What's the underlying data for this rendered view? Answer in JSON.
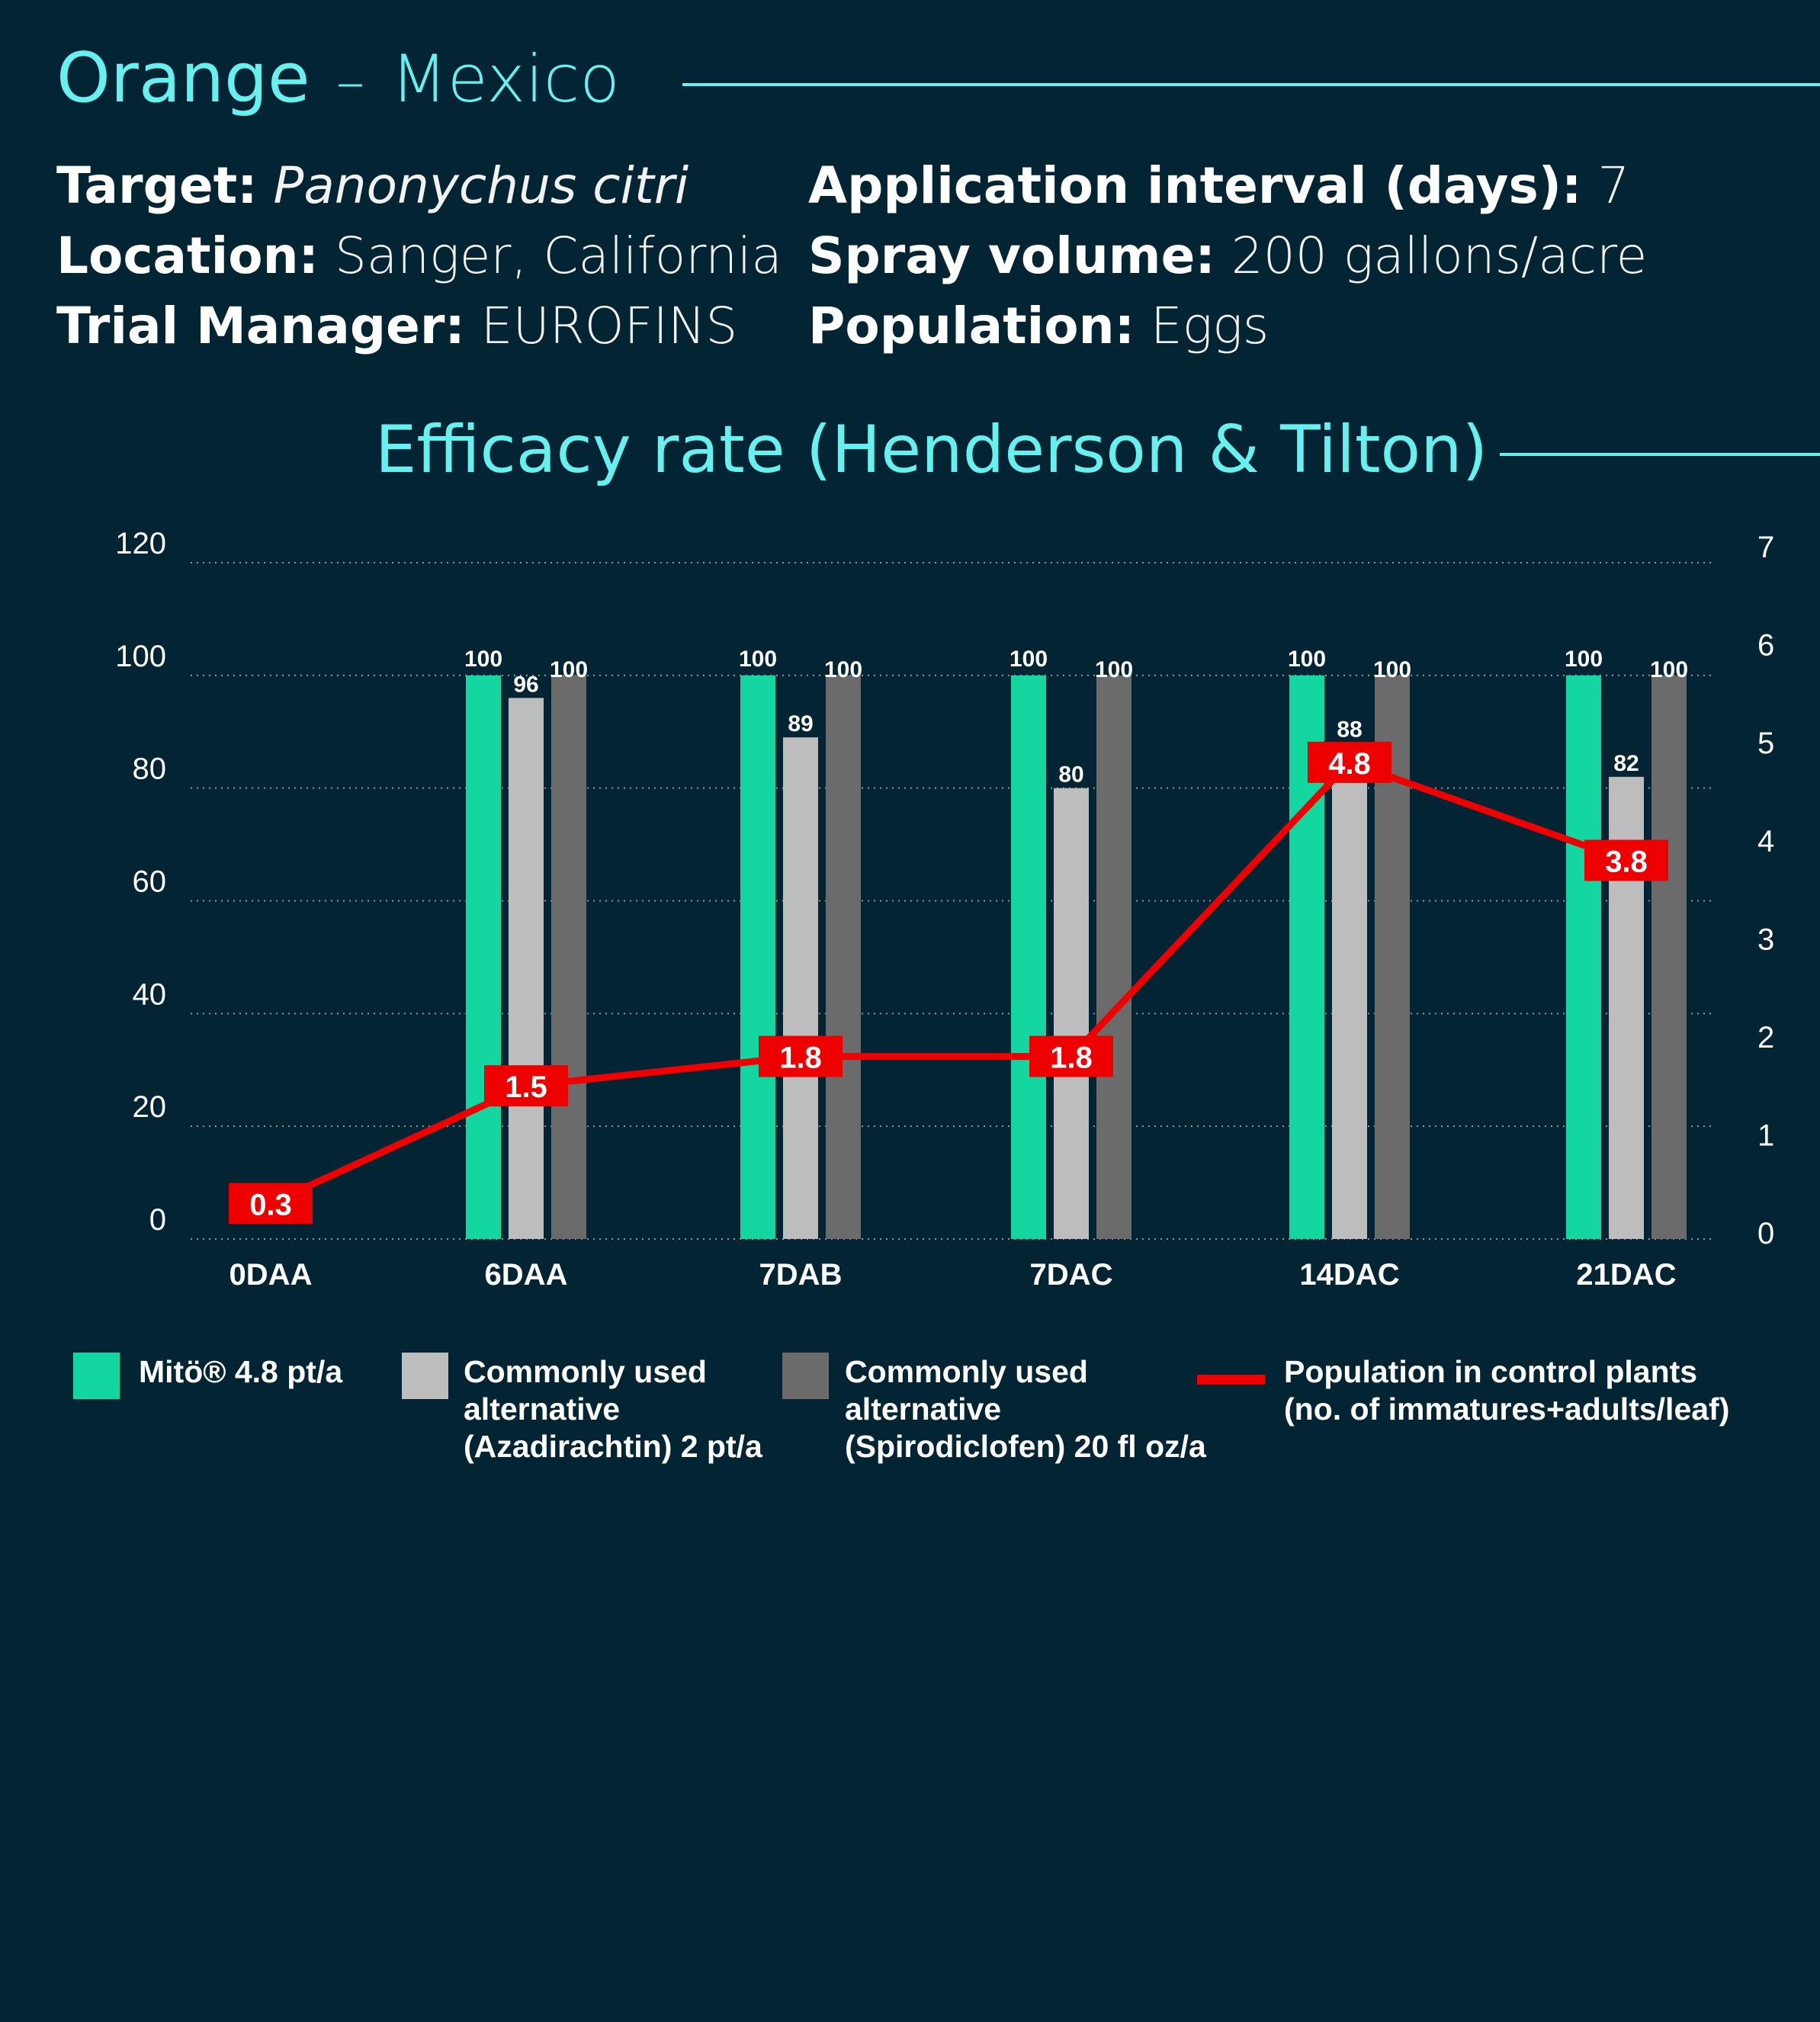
{
  "header": {
    "crop": "Orange",
    "dash": "–",
    "country": "Mexico"
  },
  "meta": {
    "target_label": "Target:",
    "target_value": "Panonychus citri",
    "location_label": "Location:",
    "location_value": "Sanger, California",
    "manager_label": "Trial Manager:",
    "manager_value": "EUROFINS",
    "interval_label": "Application interval (days):",
    "interval_value": "7",
    "spray_label": "Spray volume:",
    "spray_value": "200 gallons/acre",
    "population_label": "Population:",
    "population_value": "Eggs"
  },
  "colors": {
    "background": "#022433",
    "accent": "#66f0f0",
    "mito": "#13d6a0",
    "azadirachtin": "#bdbdbd",
    "spirodiclofen": "#6b6b6b",
    "population": "#ee0000"
  },
  "chart_data": {
    "type": "bar",
    "title": "Efficacy rate (Henderson & Tilton)",
    "categories": [
      "0DAA",
      "6DAA",
      "7DAB",
      "7DAC",
      "14DAC",
      "21DAC"
    ],
    "ylim": [
      0,
      120
    ],
    "y_ticks": [
      "0",
      "20",
      "40",
      "60",
      "80",
      "100",
      "120"
    ],
    "y2lim": [
      0,
      7
    ],
    "y2_ticks": [
      "0",
      "1",
      "2",
      "3",
      "4",
      "5",
      "6",
      "7"
    ],
    "grid": true,
    "series": [
      {
        "name": "Mitö® 4.8 pt/a",
        "type": "bar",
        "color": "#13d6a0",
        "values": [
          null,
          100,
          100,
          100,
          100,
          100
        ],
        "labels": [
          "",
          "100",
          "100",
          "100",
          "100",
          "100"
        ]
      },
      {
        "name": "Commonly used alternative (Azadirachtin) 2 pt/a",
        "type": "bar",
        "color": "#bdbdbd",
        "values": [
          null,
          96,
          89,
          80,
          88,
          82
        ],
        "labels": [
          "",
          "96",
          "89",
          "80",
          "88",
          "82"
        ]
      },
      {
        "name": "Commonly used alternative (Spirodiclofen) 20 fl oz/a",
        "type": "bar",
        "color": "#6b6b6b",
        "values": [
          null,
          100,
          100,
          100,
          100,
          100
        ],
        "labels": [
          "",
          "100",
          "100",
          "100",
          "100",
          "100"
        ]
      },
      {
        "name": "Population in control plants (no. of immatures+adults/leaf)",
        "type": "line",
        "axis": "right",
        "color": "#ee0000",
        "values": [
          0.3,
          1.5,
          1.8,
          1.8,
          4.8,
          3.8
        ],
        "labels": [
          "0.3",
          "1.5",
          "1.8",
          "1.8",
          "4.8",
          "3.8"
        ]
      }
    ]
  },
  "legend": {
    "mito_line1": "Mitö® 4.8 pt/a",
    "aza_line1": "Commonly used",
    "aza_line2": "alternative",
    "aza_line3": "(Azadirachtin) 2 pt/a",
    "spiro_line1": "Commonly used",
    "spiro_line2": "alternative",
    "spiro_line3": "(Spirodiclofen) 20 fl oz/a",
    "pop_line1": "Population in control plants",
    "pop_line2": "(no. of immatures+adults/leaf)"
  }
}
